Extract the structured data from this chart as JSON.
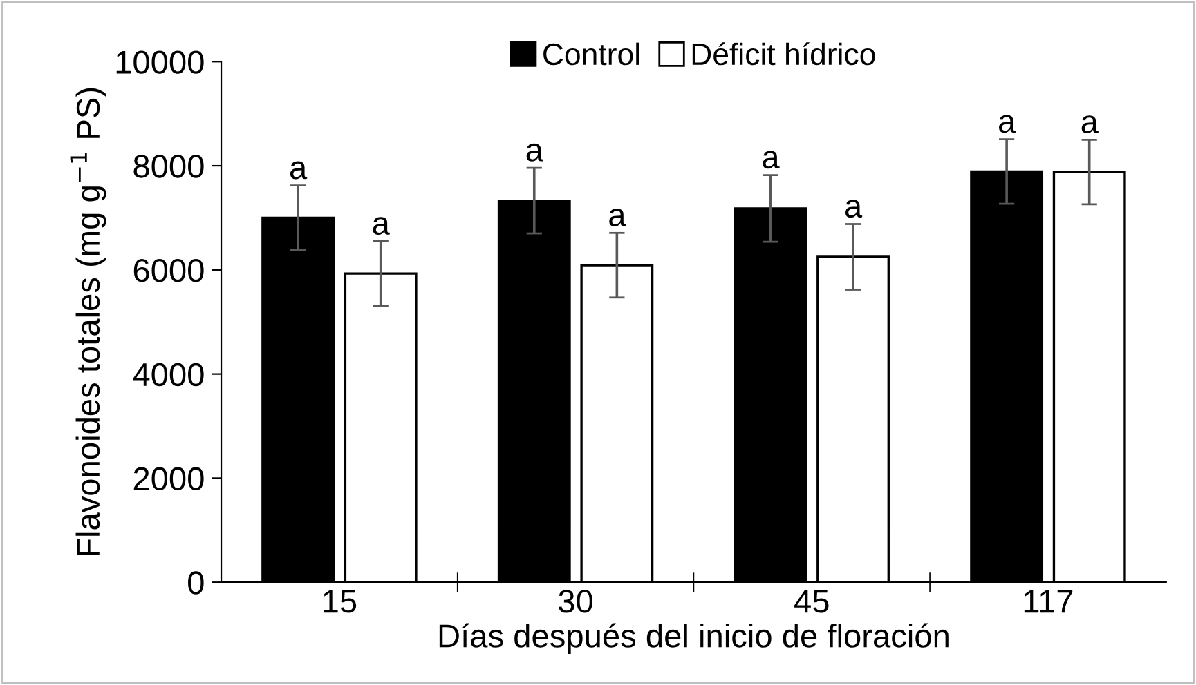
{
  "chart_data": {
    "type": "bar",
    "xlabel": "Días después del inicio de floración",
    "ylabel": "Flavonoides totales (mg g$^{−1}$ PS)",
    "categories": [
      "15",
      "30",
      "45",
      "117"
    ],
    "series": [
      {
        "name": "Control",
        "color": "#000000",
        "values": [
          7000,
          7330,
          7180,
          7890
        ],
        "errors": [
          620,
          630,
          640,
          620
        ],
        "value_labels": [
          "a",
          "a",
          "a",
          "a"
        ]
      },
      {
        "name": "Déficit hídrico",
        "color": "#ffffff",
        "values": [
          5930,
          6090,
          6250,
          7880
        ],
        "errors": [
          620,
          620,
          630,
          620
        ],
        "value_labels": [
          "a",
          "a",
          "a",
          "a"
        ]
      }
    ],
    "ylim": [
      0,
      10000
    ],
    "yticks": [
      0,
      2000,
      4000,
      6000,
      8000,
      10000
    ],
    "grid": false,
    "legend": "top"
  }
}
